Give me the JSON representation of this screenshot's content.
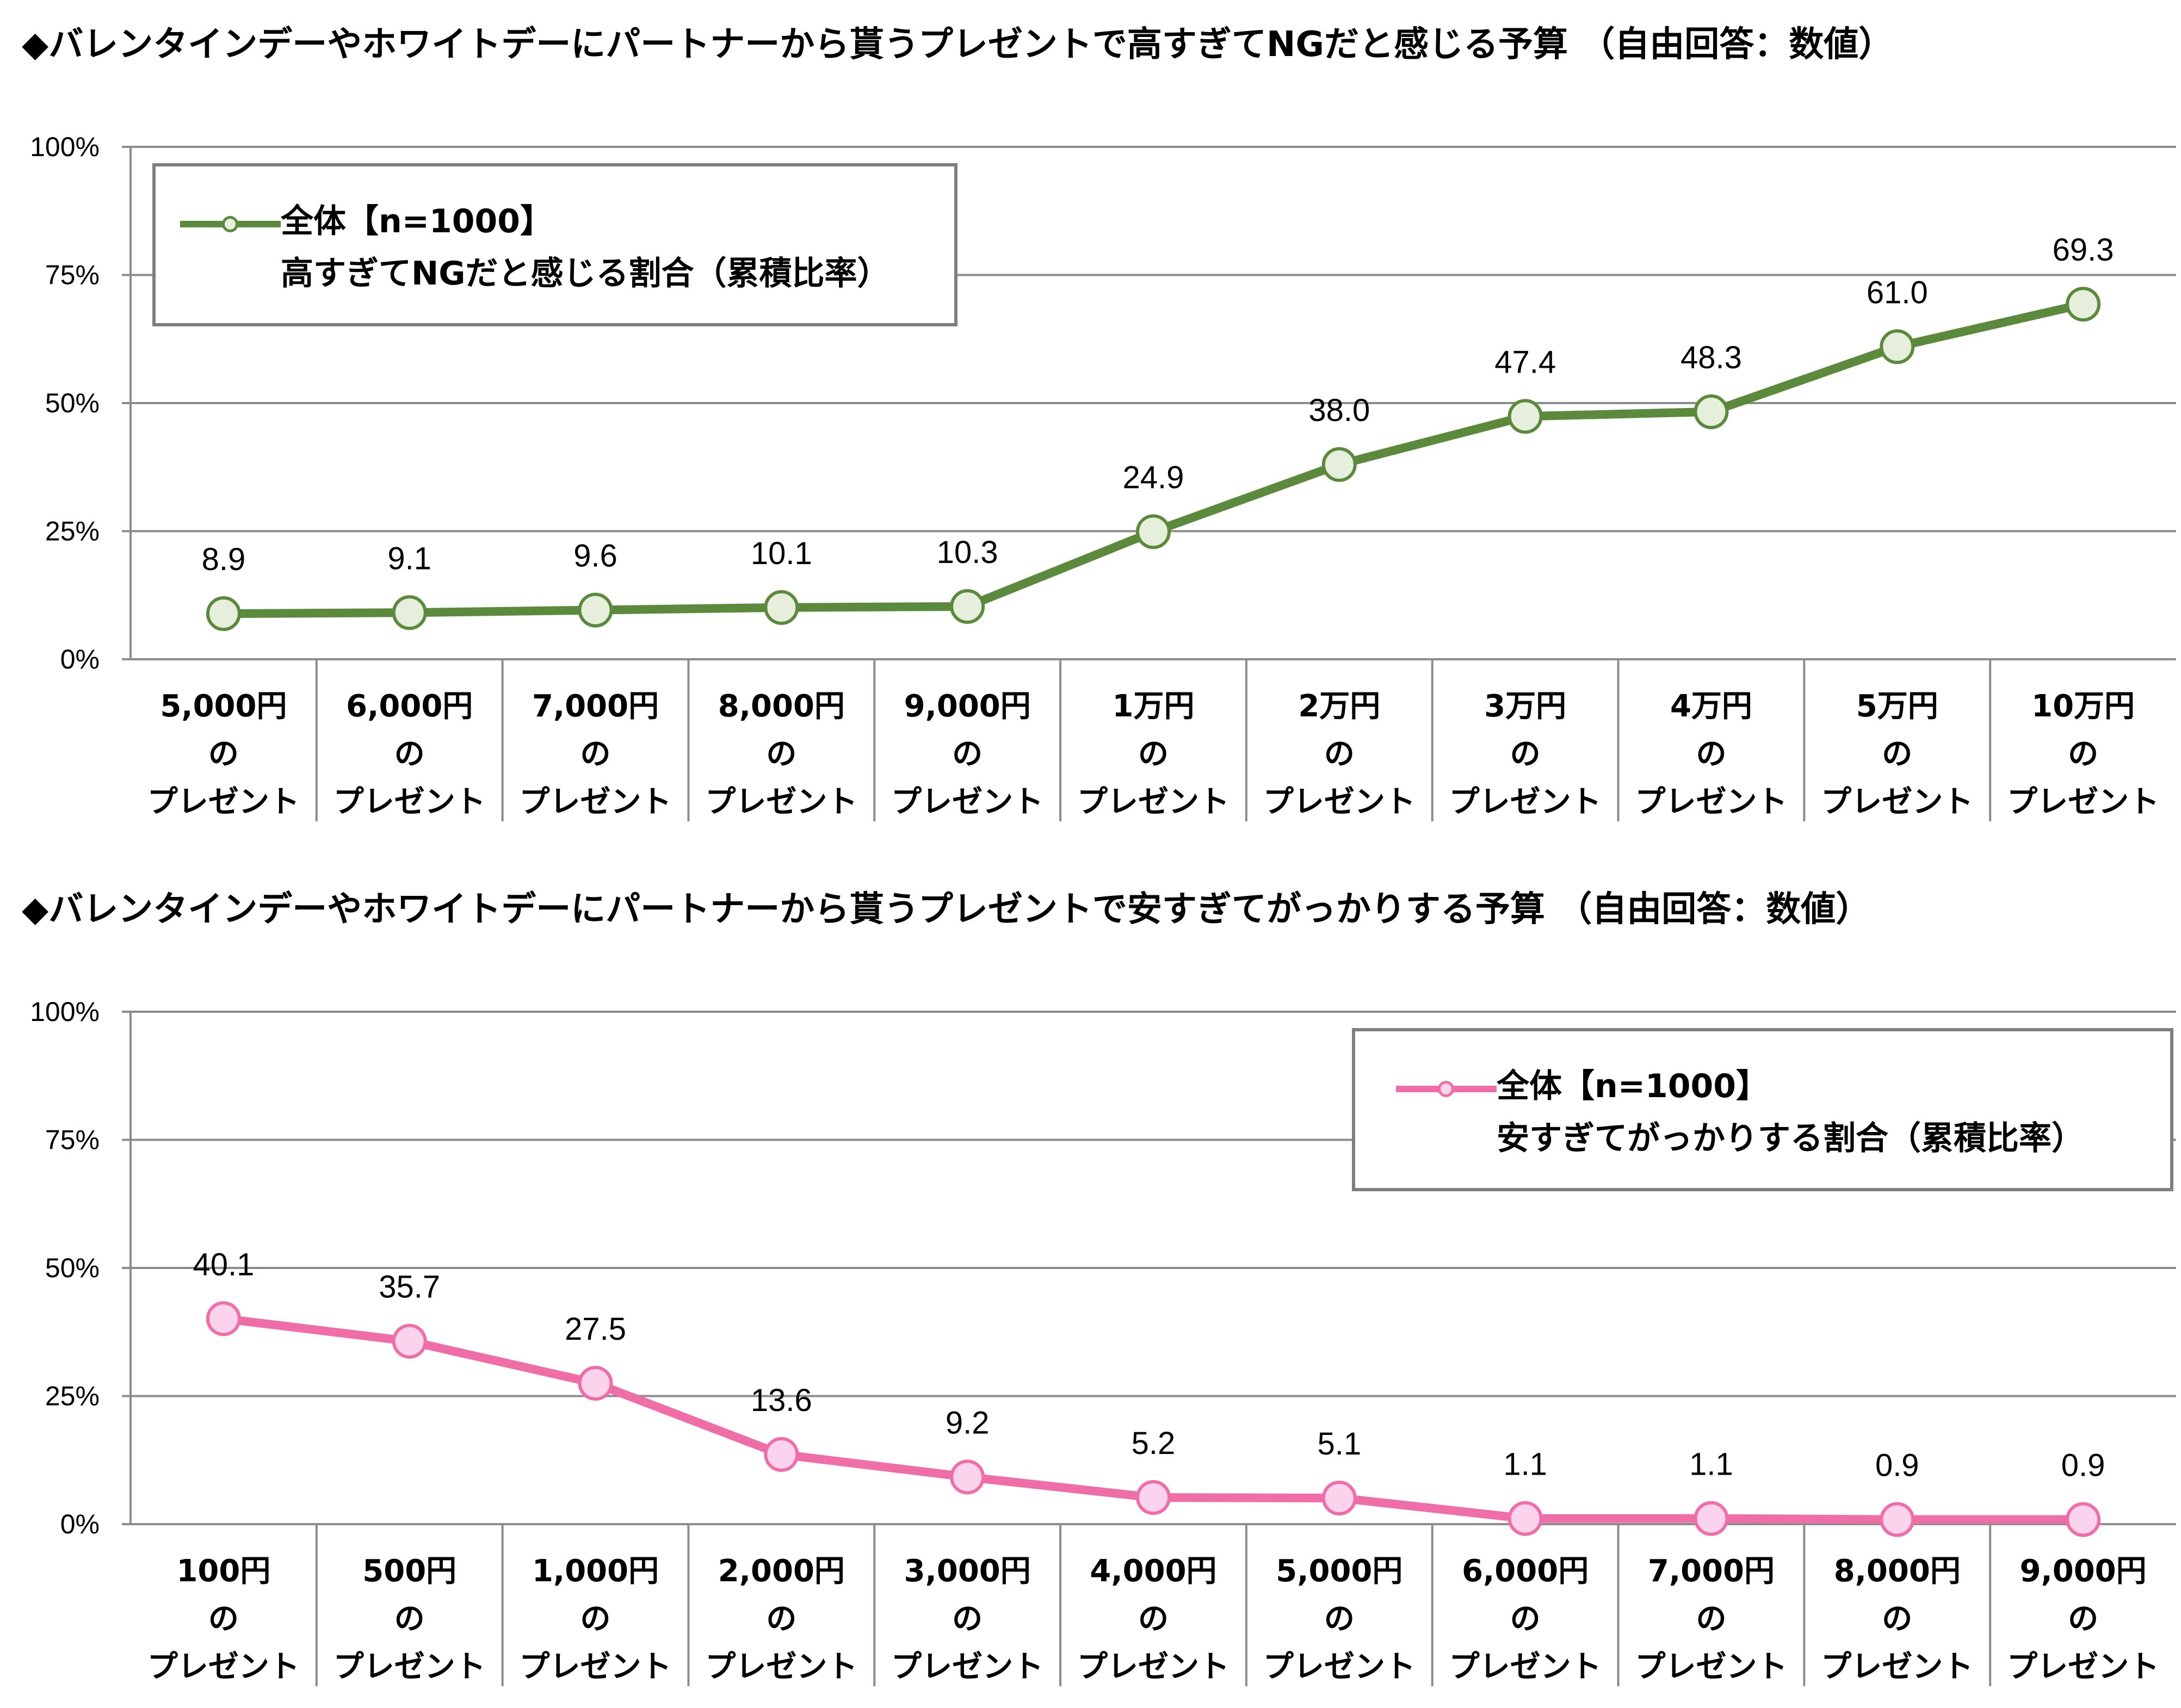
{
  "chart_data": [
    {
      "type": "line",
      "title": "◆バレンタインデーやホワイトデーにパートナーから貰うプレゼントで高すぎてNGだと感じる予算 （自由回答：数値）",
      "categories": [
        [
          "5,000円",
          "の",
          "プレゼント"
        ],
        [
          "6,000円",
          "の",
          "プレゼント"
        ],
        [
          "7,000円",
          "の",
          "プレゼント"
        ],
        [
          "8,000円",
          "の",
          "プレゼント"
        ],
        [
          "9,000円",
          "の",
          "プレゼント"
        ],
        [
          "1万円",
          "の",
          "プレゼント"
        ],
        [
          "2万円",
          "の",
          "プレゼント"
        ],
        [
          "3万円",
          "の",
          "プレゼント"
        ],
        [
          "4万円",
          "の",
          "プレゼント"
        ],
        [
          "5万円",
          "の",
          "プレゼント"
        ],
        [
          "10万円",
          "の",
          "プレゼント"
        ]
      ],
      "series": [
        {
          "name": "全体【n=1000】",
          "values": [
            8.9,
            9.1,
            9.6,
            10.1,
            10.3,
            24.9,
            38.0,
            47.4,
            48.3,
            61.0,
            69.3
          ],
          "labels": [
            "8.9",
            "9.1",
            "9.6",
            "10.1",
            "10.3",
            "24.9",
            "38.0",
            "47.4",
            "48.3",
            "61.0",
            "69.3"
          ],
          "line_color": "#5b8a3c",
          "marker_fill": "#e6efdc"
        }
      ],
      "legend": {
        "line1": "全体【n=1000】",
        "line2": "高すぎてNGだと感じる割合（累積比率）",
        "position": "top-left"
      },
      "y_ticks": [
        "100%",
        "75%",
        "50%",
        "25%",
        "0%"
      ],
      "ylim": [
        0,
        100
      ],
      "grid": true
    },
    {
      "type": "line",
      "title": "◆バレンタインデーやホワイトデーにパートナーから貰うプレゼントで安すぎてがっかりする予算 （自由回答：数値）",
      "categories": [
        [
          "100円",
          "の",
          "プレゼント"
        ],
        [
          "500円",
          "の",
          "プレゼント"
        ],
        [
          "1,000円",
          "の",
          "プレゼント"
        ],
        [
          "2,000円",
          "の",
          "プレゼント"
        ],
        [
          "3,000円",
          "の",
          "プレゼント"
        ],
        [
          "4,000円",
          "の",
          "プレゼント"
        ],
        [
          "5,000円",
          "の",
          "プレゼント"
        ],
        [
          "6,000円",
          "の",
          "プレゼント"
        ],
        [
          "7,000円",
          "の",
          "プレゼント"
        ],
        [
          "8,000円",
          "の",
          "プレゼント"
        ],
        [
          "9,000円",
          "の",
          "プレゼント"
        ]
      ],
      "series": [
        {
          "name": "全体【n=1000】",
          "values": [
            40.1,
            35.7,
            27.5,
            13.6,
            9.2,
            5.2,
            5.1,
            1.1,
            1.1,
            0.9,
            0.9
          ],
          "labels": [
            "40.1",
            "35.7",
            "27.5",
            "13.6",
            "9.2",
            "5.2",
            "5.1",
            "1.1",
            "1.1",
            "0.9",
            "0.9"
          ],
          "line_color": "#f06ea8",
          "marker_fill": "#fcd3ec"
        }
      ],
      "legend": {
        "line1": "全体【n=1000】",
        "line2": "安すぎてがっかりする割合（累積比率）",
        "position": "top-right"
      },
      "y_ticks": [
        "100%",
        "75%",
        "50%",
        "25%",
        "0%"
      ],
      "ylim": [
        0,
        100
      ],
      "grid": true
    }
  ]
}
